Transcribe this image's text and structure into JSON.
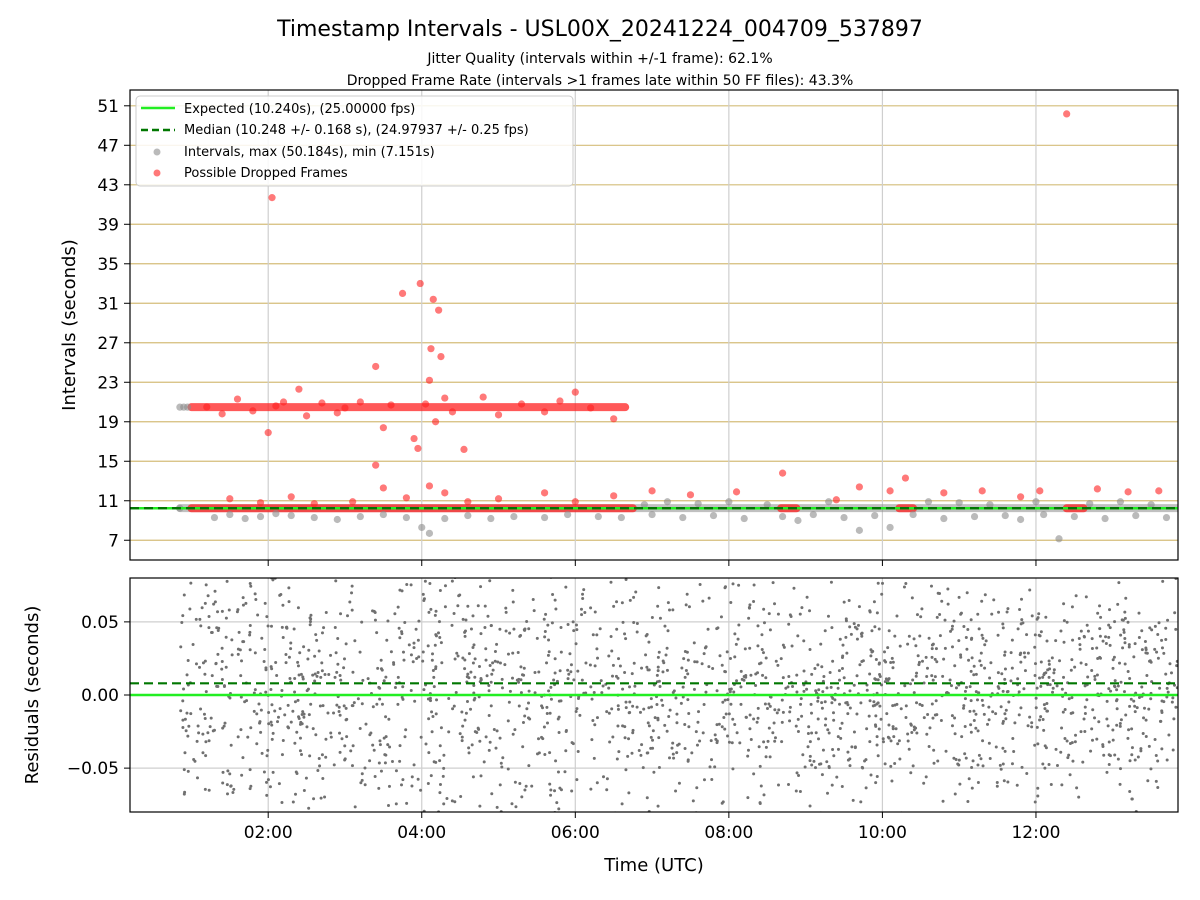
{
  "chart_data": [
    {
      "type": "scatter",
      "title": "Timestamp Intervals - USL00X_20241224_004709_537897",
      "subtitle_1": "Jitter Quality (intervals within +/-1 frame): 62.1%",
      "subtitle_2": "Dropped Frame Rate (intervals >1 frames late within 50 FF files): 43.3%",
      "xlabel": "",
      "ylabel": "Intervals (seconds)",
      "x_unit": "hours (UTC)",
      "xlim": [
        0.2,
        13.85
      ],
      "ylim": [
        5.0,
        52.6
      ],
      "grid": true,
      "legend_position": "upper-left",
      "y_ticks": [
        7,
        11,
        15,
        19,
        23,
        27,
        31,
        35,
        39,
        43,
        47,
        51
      ],
      "x_ticks": [
        2,
        4,
        6,
        8,
        10,
        12
      ],
      "x_tick_labels": [
        "02:00",
        "04:00",
        "06:00",
        "08:00",
        "10:00",
        "12:00"
      ],
      "series": [
        {
          "name": "Expected (10.240s), (25.00000 fps)",
          "kind": "hline",
          "y": 10.24,
          "color": "#22ee22",
          "style": "solid"
        },
        {
          "name": "Median (10.248 +/- 0.168 s), (24.97937 +/- 0.25 fps)",
          "kind": "hline",
          "y": 10.248,
          "color": "#007700",
          "style": "dashed"
        },
        {
          "name": "Intervals, max (50.184s), min (7.151s)",
          "kind": "scatter",
          "color": "#8c8c8c",
          "points": [
            [
              0.85,
              20.48
            ],
            [
              0.9,
              20.48
            ],
            [
              0.95,
              20.48
            ],
            [
              0.85,
              10.24
            ],
            [
              1.3,
              9.3
            ],
            [
              1.5,
              9.6
            ],
            [
              1.7,
              9.2
            ],
            [
              1.9,
              9.4
            ],
            [
              2.1,
              9.7
            ],
            [
              2.3,
              9.5
            ],
            [
              2.6,
              9.3
            ],
            [
              2.9,
              9.1
            ],
            [
              3.2,
              9.4
            ],
            [
              3.5,
              9.6
            ],
            [
              3.8,
              9.3
            ],
            [
              4.0,
              8.3
            ],
            [
              4.1,
              7.7
            ],
            [
              4.3,
              9.2
            ],
            [
              4.6,
              9.5
            ],
            [
              4.9,
              9.2
            ],
            [
              5.2,
              9.4
            ],
            [
              5.6,
              9.3
            ],
            [
              5.9,
              9.6
            ],
            [
              6.3,
              9.4
            ],
            [
              6.6,
              9.3
            ],
            [
              6.9,
              10.6
            ],
            [
              7.0,
              9.6
            ],
            [
              7.2,
              10.9
            ],
            [
              7.4,
              9.3
            ],
            [
              7.6,
              10.7
            ],
            [
              7.8,
              9.5
            ],
            [
              8.0,
              10.9
            ],
            [
              8.2,
              9.2
            ],
            [
              8.5,
              10.6
            ],
            [
              8.7,
              9.4
            ],
            [
              8.9,
              9.0
            ],
            [
              9.1,
              9.6
            ],
            [
              9.3,
              10.9
            ],
            [
              9.5,
              9.3
            ],
            [
              9.7,
              8.0
            ],
            [
              9.9,
              9.5
            ],
            [
              10.1,
              8.3
            ],
            [
              10.4,
              9.6
            ],
            [
              10.6,
              10.9
            ],
            [
              10.8,
              9.2
            ],
            [
              11.0,
              10.8
            ],
            [
              11.2,
              9.4
            ],
            [
              11.4,
              10.6
            ],
            [
              11.6,
              9.5
            ],
            [
              11.8,
              9.1
            ],
            [
              12.0,
              10.9
            ],
            [
              12.1,
              9.6
            ],
            [
              12.3,
              7.15
            ],
            [
              12.5,
              9.4
            ],
            [
              12.7,
              10.7
            ],
            [
              12.9,
              9.2
            ],
            [
              13.1,
              10.9
            ],
            [
              13.3,
              9.5
            ],
            [
              13.5,
              10.6
            ],
            [
              13.7,
              9.3
            ]
          ]
        },
        {
          "name": "Possible Dropped Frames",
          "kind": "scatter",
          "color": "#ff2020",
          "points": [
            [
              1.2,
              20.5
            ],
            [
              1.4,
              19.8
            ],
            [
              1.6,
              21.3
            ],
            [
              1.8,
              20.1
            ],
            [
              2.05,
              41.7
            ],
            [
              2.0,
              17.9
            ],
            [
              2.1,
              20.6
            ],
            [
              2.2,
              21.0
            ],
            [
              2.4,
              22.3
            ],
            [
              2.5,
              19.6
            ],
            [
              2.7,
              20.9
            ],
            [
              2.9,
              19.9
            ],
            [
              3.0,
              20.4
            ],
            [
              3.2,
              21.0
            ],
            [
              3.4,
              24.6
            ],
            [
              3.4,
              14.6
            ],
            [
              3.5,
              18.4
            ],
            [
              3.6,
              20.7
            ],
            [
              3.75,
              32.0
            ],
            [
              3.9,
              17.3
            ],
            [
              3.95,
              16.3
            ],
            [
              3.98,
              33.0
            ],
            [
              4.05,
              20.8
            ],
            [
              4.1,
              23.2
            ],
            [
              4.12,
              26.4
            ],
            [
              4.15,
              31.4
            ],
            [
              4.18,
              19.0
            ],
            [
              4.22,
              30.3
            ],
            [
              4.25,
              25.6
            ],
            [
              4.3,
              21.4
            ],
            [
              4.4,
              20.0
            ],
            [
              4.55,
              16.2
            ],
            [
              4.8,
              21.5
            ],
            [
              5.0,
              19.7
            ],
            [
              5.3,
              20.8
            ],
            [
              5.6,
              20.0
            ],
            [
              5.8,
              21.1
            ],
            [
              6.0,
              22.0
            ],
            [
              6.2,
              20.4
            ],
            [
              6.5,
              19.3
            ],
            [
              1.5,
              11.2
            ],
            [
              1.9,
              10.8
            ],
            [
              2.3,
              11.4
            ],
            [
              2.6,
              10.7
            ],
            [
              3.1,
              10.9
            ],
            [
              3.5,
              12.3
            ],
            [
              3.8,
              11.3
            ],
            [
              4.1,
              12.5
            ],
            [
              4.3,
              11.8
            ],
            [
              4.6,
              10.9
            ],
            [
              5.0,
              11.2
            ],
            [
              5.6,
              11.8
            ],
            [
              6.0,
              10.9
            ],
            [
              6.5,
              11.5
            ],
            [
              7.0,
              12.0
            ],
            [
              7.5,
              11.6
            ],
            [
              8.1,
              11.9
            ],
            [
              8.7,
              13.8
            ],
            [
              9.4,
              11.1
            ],
            [
              9.7,
              12.4
            ],
            [
              10.1,
              12.0
            ],
            [
              10.3,
              13.3
            ],
            [
              10.8,
              11.8
            ],
            [
              11.3,
              12.0
            ],
            [
              11.8,
              11.4
            ],
            [
              12.05,
              12.0
            ],
            [
              12.4,
              50.18
            ],
            [
              12.8,
              12.2
            ],
            [
              13.2,
              11.9
            ],
            [
              13.6,
              12.0
            ]
          ]
        }
      ],
      "band_segments": [
        {
          "series": "Intervals, max (50.184s), min (7.151s)",
          "x0": 0.85,
          "x1": 13.85,
          "y": 10.25,
          "color": "#8c8c8c"
        },
        {
          "series": "Possible Dropped Frames",
          "x0": 1.0,
          "x1": 6.75,
          "y": 10.24,
          "color": "#ff2020"
        },
        {
          "series": "Possible Dropped Frames",
          "x0": 1.0,
          "x1": 6.65,
          "y": 20.48,
          "color": "#ff2020"
        },
        {
          "series": "Possible Dropped Frames",
          "x0": 8.68,
          "x1": 8.88,
          "y": 10.24,
          "color": "#ff2020"
        },
        {
          "series": "Possible Dropped Frames",
          "x0": 10.22,
          "x1": 10.4,
          "y": 10.24,
          "color": "#ff2020"
        },
        {
          "series": "Possible Dropped Frames",
          "x0": 12.4,
          "x1": 12.62,
          "y": 10.24,
          "color": "#ff2020"
        }
      ]
    },
    {
      "type": "scatter",
      "title": "",
      "xlabel": "Time (UTC)",
      "ylabel": "Residuals (seconds)",
      "x_unit": "hours (UTC)",
      "xlim": [
        0.2,
        13.85
      ],
      "ylim": [
        -0.08,
        0.08
      ],
      "grid": true,
      "y_ticks": [
        -0.05,
        0.0,
        0.05
      ],
      "y_tick_labels": [
        "−0.05",
        "0.00",
        "0.05"
      ],
      "x_ticks": [
        2,
        4,
        6,
        8,
        10,
        12
      ],
      "x_tick_labels": [
        "02:00",
        "04:00",
        "06:00",
        "08:00",
        "10:00",
        "12:00"
      ],
      "series": [
        {
          "kind": "hline",
          "y": 0.0,
          "color": "#22ee22",
          "style": "solid"
        },
        {
          "kind": "hline",
          "y": 0.008,
          "color": "#007700",
          "style": "dashed"
        },
        {
          "kind": "scatter-cloud",
          "color": "#707070",
          "x_range": [
            0.85,
            13.85
          ],
          "y_spread": 0.08,
          "approx_count": 2200
        }
      ]
    }
  ]
}
